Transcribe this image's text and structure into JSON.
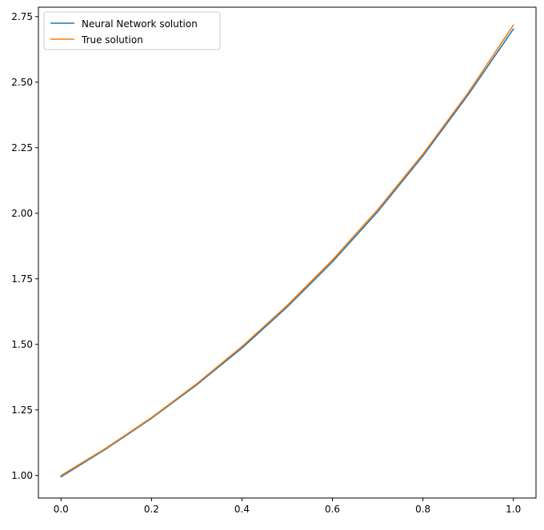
{
  "chart_data": {
    "type": "line",
    "title": "",
    "xlabel": "",
    "ylabel": "",
    "xlim": [
      -0.05,
      1.05
    ],
    "ylim": [
      0.914,
      2.786
    ],
    "xticks": [
      0.0,
      0.2,
      0.4,
      0.6,
      0.8,
      1.0
    ],
    "xtick_labels": [
      "0.0",
      "0.2",
      "0.4",
      "0.6",
      "0.8",
      "1.0"
    ],
    "yticks": [
      1.0,
      1.25,
      1.5,
      1.75,
      2.0,
      2.25,
      2.5,
      2.75
    ],
    "ytick_labels": [
      "1.00",
      "1.25",
      "1.50",
      "1.75",
      "2.00",
      "2.25",
      "2.50",
      "2.75"
    ],
    "grid": false,
    "legend_position": "top-left",
    "series": [
      {
        "name": "Neural Network solution",
        "color": "#1f77b4",
        "x": [
          0.0,
          0.1,
          0.2,
          0.3,
          0.4,
          0.5,
          0.6,
          0.7,
          0.8,
          0.9,
          1.0
        ],
        "y": [
          0.995,
          1.102,
          1.218,
          1.346,
          1.486,
          1.643,
          1.815,
          2.006,
          2.219,
          2.452,
          2.703
        ]
      },
      {
        "name": "True solution",
        "color": "#ff7f0e",
        "x": [
          0.0,
          0.1,
          0.2,
          0.3,
          0.4,
          0.5,
          0.6,
          0.7,
          0.8,
          0.9,
          1.0
        ],
        "y": [
          1.0,
          1.105,
          1.221,
          1.35,
          1.492,
          1.649,
          1.822,
          2.014,
          2.226,
          2.46,
          2.718
        ]
      }
    ]
  }
}
